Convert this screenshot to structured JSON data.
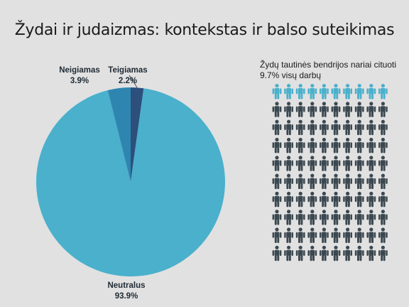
{
  "title": "Žydai ir judaizmas: kontekstas ir balso suteikimas",
  "colors": {
    "background": "#e1e1e1",
    "neutral": "#4ab0cc",
    "negative": "#2e86b0",
    "positive": "#2c4f7c",
    "person_highlight": "#4ab0cc",
    "person_default": "#3c4850"
  },
  "chart_data": {
    "type": "pie",
    "title": "Žydai ir judaizmas: kontekstas ir balso suteikimas",
    "slices": [
      {
        "label": "Teigiamas",
        "pct_label": "2.2%",
        "value": 2.2,
        "color": "#2c4f7c"
      },
      {
        "label": "Neutralus",
        "pct_label": "93.9%",
        "value": 93.9,
        "color": "#4ab0cc"
      },
      {
        "label": "Neigiamas",
        "pct_label": "3.9%",
        "value": 3.9,
        "color": "#2e86b0"
      }
    ]
  },
  "pictogram": {
    "text": "Žydų tautinės bendrijos nariai cituoti 9.7% visų darbų",
    "total": 100,
    "highlighted": 10,
    "icon": "person-icon"
  }
}
